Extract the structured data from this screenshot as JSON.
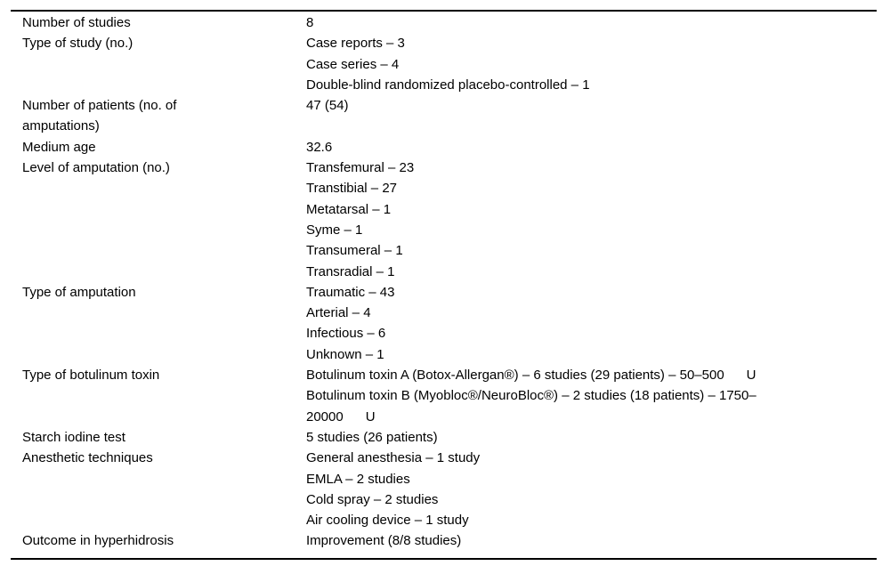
{
  "colors": {
    "background": "#ffffff",
    "text": "#000000",
    "rule": "#000000"
  },
  "table": {
    "rows": [
      {
        "label_lines": [
          "Number of studies"
        ],
        "value_lines": [
          "8"
        ]
      },
      {
        "label_lines": [
          "Type of study (no.)"
        ],
        "value_lines": [
          "Case reports – 3",
          "Case series – 4",
          "Double-blind randomized placebo-controlled – 1"
        ]
      },
      {
        "label_lines": [
          "Number of patients (no. of",
          "amputations)"
        ],
        "value_lines": [
          "47 (54)"
        ]
      },
      {
        "label_lines": [
          "Medium age"
        ],
        "value_lines": [
          "32.6"
        ]
      },
      {
        "label_lines": [
          "Level of amputation (no.)"
        ],
        "value_lines": [
          "Transfemural – 23",
          "Transtibial – 27",
          "Metatarsal – 1",
          "Syme – 1",
          "Transumeral – 1",
          "Transradial – 1"
        ]
      },
      {
        "label_lines": [
          "Type of amputation"
        ],
        "value_lines": [
          "Traumatic – 43",
          "Arterial – 4",
          "Infectious – 6",
          "Unknown – 1"
        ]
      },
      {
        "label_lines": [
          "Type of botulinum toxin"
        ],
        "value_lines": [
          "Botulinum toxin A (Botox-Allergan®) – 6 studies (29 patients) – 50–500      U",
          "Botulinum toxin B (Myobloc®/NeuroBloc®) – 2 studies (18 patients) – 1750–",
          "20000      U"
        ]
      },
      {
        "label_lines": [
          "Starch iodine test"
        ],
        "value_lines": [
          "5 studies (26 patients)"
        ]
      },
      {
        "label_lines": [
          "Anesthetic techniques"
        ],
        "value_lines": [
          "General anesthesia – 1 study",
          "EMLA – 2 studies",
          "Cold spray – 2 studies",
          "Air cooling device – 1 study"
        ]
      },
      {
        "label_lines": [
          "Outcome in hyperhidrosis"
        ],
        "value_lines": [
          "Improvement (8/8 studies)"
        ]
      }
    ]
  }
}
